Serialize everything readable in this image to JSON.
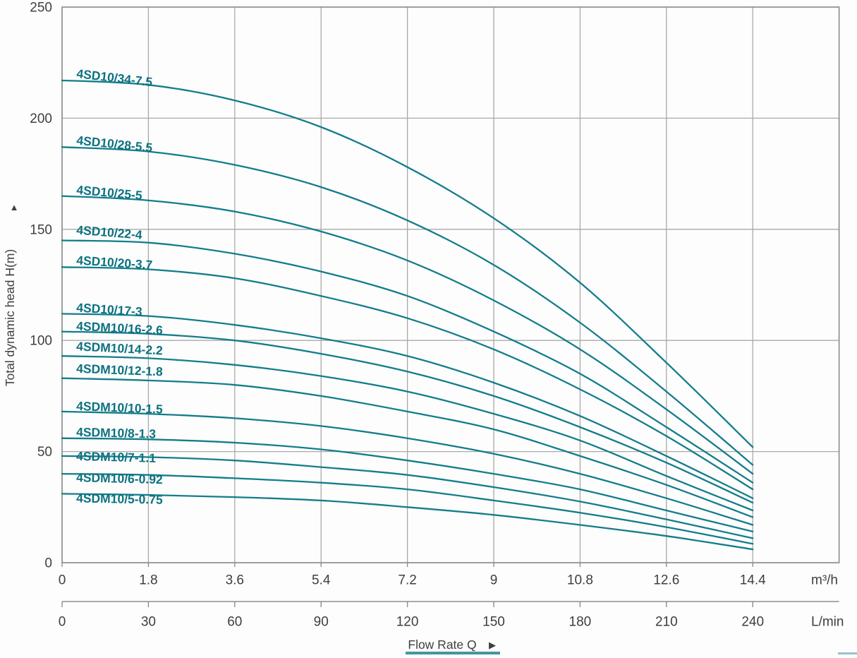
{
  "palette": {
    "curve": "#137d8b",
    "curve_label": "#0c7280",
    "grid": "#a9a9a9",
    "border": "#8d8d8d",
    "axis_text": "#3f3f3f"
  },
  "y_axis": {
    "title": "Total dynamic head H(m)",
    "arrow": "▲",
    "tick_labels": [
      "0",
      "50",
      "100",
      "150",
      "200",
      "250"
    ]
  },
  "x_axis_primary": {
    "unit": "m³/h",
    "tick_labels": [
      "0",
      "1.8",
      "3.6",
      "5.4",
      "7.2",
      "9",
      "10.8",
      "12.6",
      "14.4"
    ]
  },
  "x_axis_secondary": {
    "unit": "L/min",
    "tick_labels": [
      "0",
      "30",
      "60",
      "90",
      "120",
      "150",
      "180",
      "210",
      "240"
    ]
  },
  "x_axis_title": {
    "text": "Flow Rate Q",
    "arrow": "▶"
  },
  "chart_data": {
    "type": "line",
    "title": "Pump performance curves: total dynamic head vs flow rate",
    "xlabel": "Flow Rate Q",
    "ylabel": "Total dynamic head H(m)",
    "x_m3h": [
      0,
      1.8,
      3.6,
      5.4,
      7.2,
      9,
      10.8,
      12.6,
      14.4
    ],
    "x_lmin": [
      0,
      30,
      60,
      90,
      120,
      150,
      180,
      210,
      240
    ],
    "xlim_m3h": [
      0,
      16.2
    ],
    "ylim": [
      0,
      250
    ],
    "grid": true,
    "legend_position": "inline-curve-labels",
    "series": [
      {
        "name": "4SD10/34-7.5",
        "head_m": [
          217,
          215,
          208,
          196,
          178,
          155,
          126,
          90,
          52
        ]
      },
      {
        "name": "4SD10/28-5.5",
        "head_m": [
          187,
          185,
          179,
          169,
          154,
          134,
          108,
          77,
          44
        ]
      },
      {
        "name": "4SD10/25-5",
        "head_m": [
          165,
          163,
          158,
          149,
          136,
          118,
          96,
          69,
          40
        ]
      },
      {
        "name": "4SD10/22-4",
        "head_m": [
          145,
          144,
          139,
          131,
          120,
          104,
          85,
          61,
          36
        ]
      },
      {
        "name": "4SD10/20-3.7",
        "head_m": [
          133,
          132,
          128,
          120,
          110,
          96,
          78,
          57,
          33
        ]
      },
      {
        "name": "4SD10/17-3",
        "head_m": [
          112,
          111,
          107,
          101,
          93,
          81,
          66,
          48,
          29
        ]
      },
      {
        "name": "4SDM10/16-2.6",
        "head_m": [
          104,
          103,
          100,
          94,
          86,
          75,
          61,
          45,
          27
        ]
      },
      {
        "name": "4SDM10/14-2.2",
        "head_m": [
          93,
          92,
          89,
          84,
          77,
          67,
          55,
          39,
          23.5
        ]
      },
      {
        "name": "4SDM10/12-1.8",
        "head_m": [
          83,
          82,
          80,
          75,
          68,
          60,
          48,
          35,
          20.5
        ]
      },
      {
        "name": "4SDM10/10-1.5",
        "head_m": [
          68,
          67,
          65,
          61.5,
          56,
          49,
          40,
          29,
          17
        ]
      },
      {
        "name": "4SDM10/8-1.3",
        "head_m": [
          56,
          55.5,
          54,
          51,
          46,
          40,
          33,
          23.5,
          14
        ]
      },
      {
        "name": "4SDM10/7-1.1",
        "head_m": [
          48,
          47.5,
          46,
          43,
          39.5,
          34,
          27.5,
          19.5,
          11
        ]
      },
      {
        "name": "4SDM10/6-0.92",
        "head_m": [
          40,
          39.5,
          38,
          36,
          33,
          28,
          22.5,
          16,
          8.5
        ]
      },
      {
        "name": "4SDM10/5-0.75",
        "head_m": [
          31,
          30.5,
          29.5,
          28,
          25,
          21.5,
          17,
          12,
          6
        ]
      }
    ]
  }
}
